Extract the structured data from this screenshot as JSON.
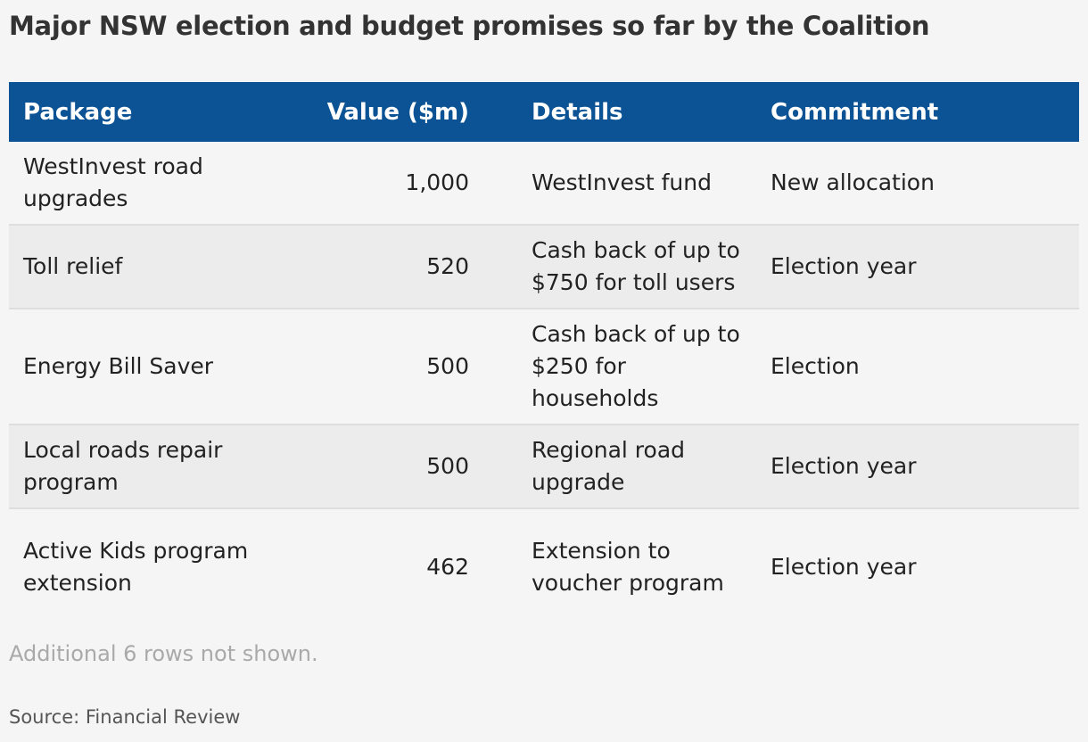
{
  "title": "Major NSW election and budget promises so far by the Coalition",
  "colors": {
    "header_bg": "#0b5394",
    "header_text": "#ffffff",
    "row_alt_bg": "#ececec",
    "page_bg": "#f5f5f5"
  },
  "chart_data": {
    "type": "table",
    "title": "Major NSW election and budget promises so far by the Coalition",
    "columns": [
      "Package",
      "Value ($m)",
      "Details",
      "Commitment"
    ],
    "rows": [
      {
        "package": "WestInvest road upgrades",
        "value": "1,000",
        "details": "WestInvest fund",
        "commitment": "New allocation"
      },
      {
        "package": "Toll relief",
        "value": "520",
        "details": "Cash back of up to $750 for toll users",
        "commitment": "Election year"
      },
      {
        "package": "Energy Bill Saver",
        "value": "500",
        "details": "Cash back of up to $250 for households",
        "commitment": "Election"
      },
      {
        "package": "Local roads repair program",
        "value": "500",
        "details": "Regional road upgrade",
        "commitment": "Election year"
      },
      {
        "package": "Active Kids program extension",
        "value": "462",
        "details": "Extension to voucher program",
        "commitment": "Election year"
      }
    ]
  },
  "note": "Additional 6 rows not shown.",
  "source": "Source: Financial Review"
}
